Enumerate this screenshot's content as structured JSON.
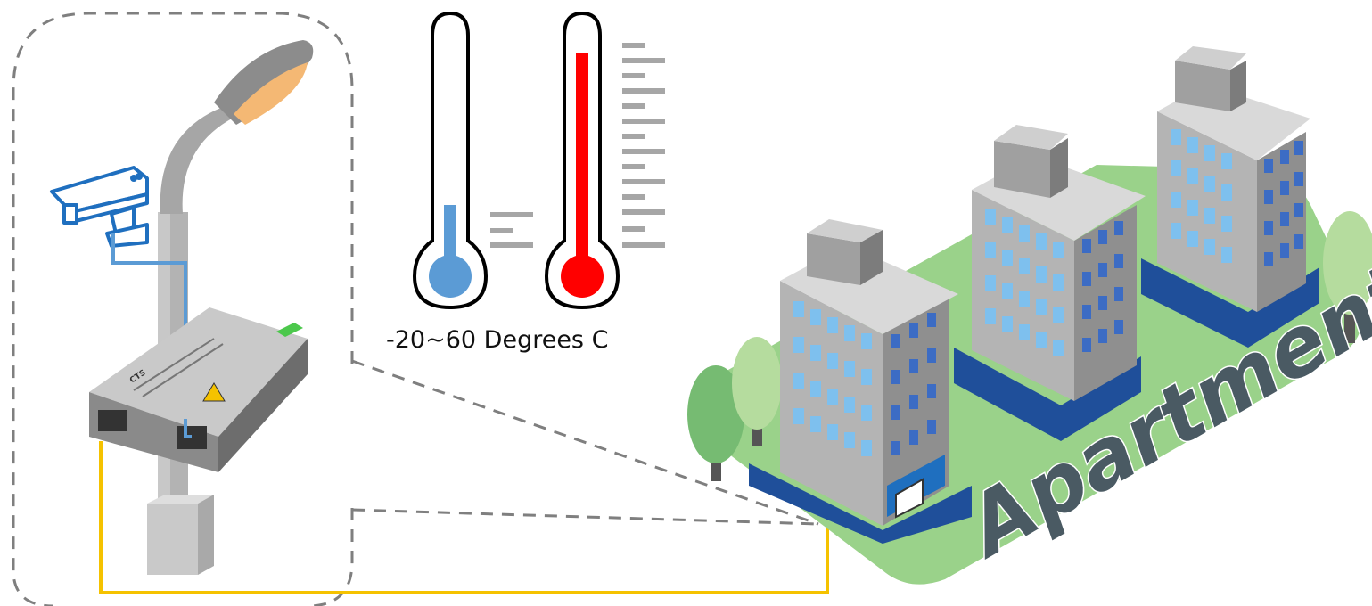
{
  "temperature": {
    "caption": "-20~60 Degrees C",
    "low_color": "#5b9bd5",
    "high_color": "#ff0000"
  },
  "apartment": {
    "label": "Apartment",
    "label_color": "#4a5a63",
    "ground_color": "#9ad28a"
  },
  "device": {
    "brand": "CTS"
  },
  "cables": {
    "fiber_color": "#f5c200",
    "copper_color": "#5b9bd5",
    "callout_color": "#7f7f7f"
  },
  "icons": [
    "cctv-camera-icon",
    "street-lamp-icon",
    "media-converter-icon",
    "thermometer-cold-icon",
    "thermometer-hot-icon",
    "apartment-building-icon",
    "tree-icon"
  ]
}
